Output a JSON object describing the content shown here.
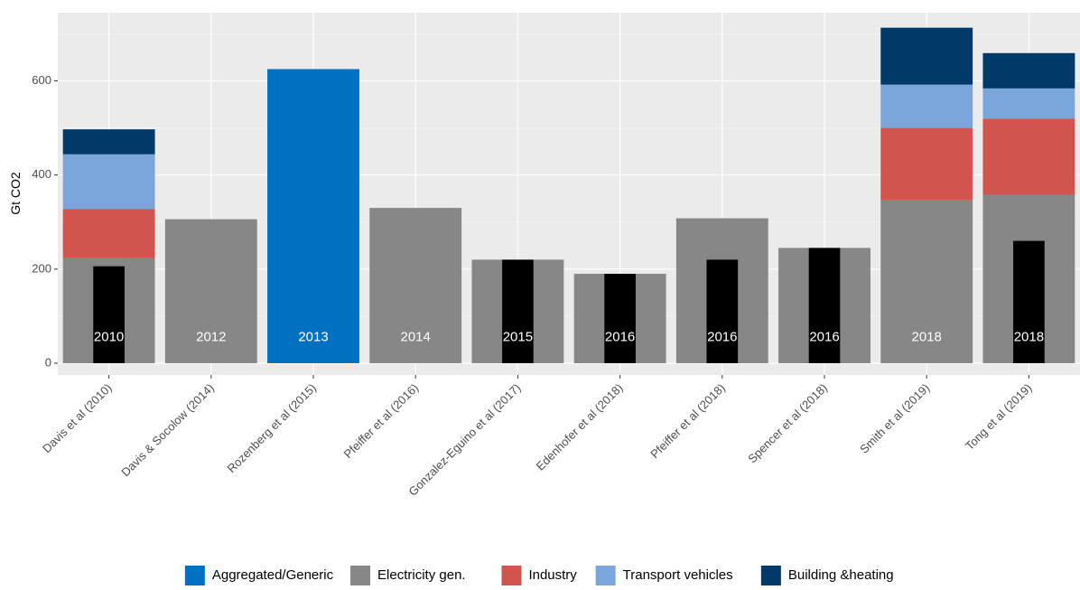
{
  "chart_data": {
    "type": "bar",
    "ylabel": "Gt CO2",
    "xlabel": "",
    "ylim": [
      -25,
      745
    ],
    "yticks": [
      0,
      200,
      400,
      600
    ],
    "grid": true,
    "legend_position": "bottom",
    "categories": [
      "Davis et al (2010)",
      "Davis & Socolow (2014)",
      "Rozenberg et al (2015)",
      "Pfeiffer et al (2016)",
      "Gonzalez-Eguino et al (2017)",
      "Edenhofer et al (2018)",
      "Pfeiffer et al (2018)",
      "Spencer et al (2018)",
      "Smith et al (2019)",
      "Tong et al (2019)"
    ],
    "year_labels": [
      "2010",
      "2012",
      "2013",
      "2014",
      "2015",
      "2016",
      "2016",
      "2016",
      "2018",
      "2018"
    ],
    "series": [
      {
        "name": "Aggregated/Generic",
        "color": "#0070C0",
        "values": [
          0,
          0,
          625,
          0,
          0,
          0,
          0,
          0,
          0,
          0
        ]
      },
      {
        "name": "Electricity gen.",
        "color": "#878787",
        "values": [
          223,
          306,
          0,
          330,
          220,
          190,
          308,
          245,
          346,
          358
        ]
      },
      {
        "name": "Industry",
        "color": "#D0554F",
        "values": [
          105,
          0,
          0,
          0,
          0,
          0,
          0,
          0,
          154,
          162
        ]
      },
      {
        "name": "Transport vehicles",
        "color": "#7BA6DB",
        "values": [
          116,
          0,
          0,
          0,
          0,
          0,
          0,
          0,
          92,
          64
        ]
      },
      {
        "name": "Building &heating",
        "color": "#003A69",
        "values": [
          53,
          0,
          0,
          0,
          0,
          0,
          0,
          0,
          121,
          75
        ]
      }
    ],
    "overlay": {
      "color": "#000000",
      "values": [
        206,
        null,
        null,
        null,
        220,
        190,
        220,
        245,
        null,
        260
      ]
    }
  }
}
